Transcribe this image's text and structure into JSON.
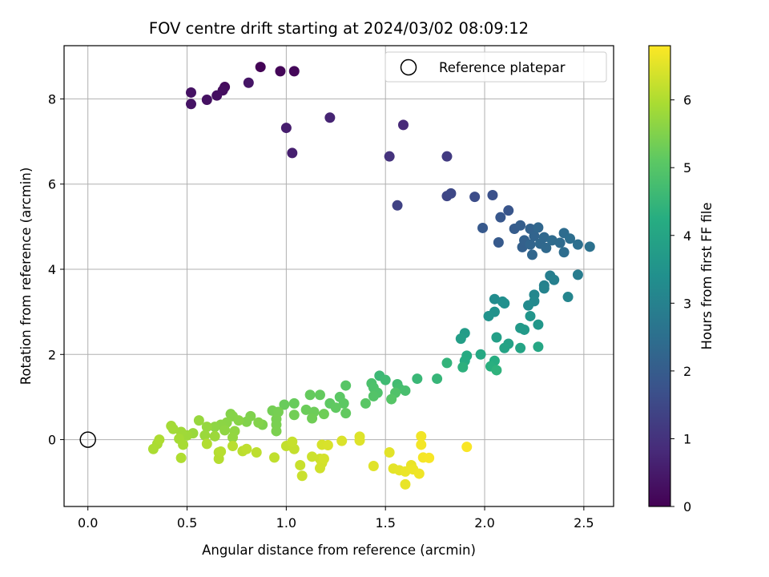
{
  "chart_data": {
    "type": "scatter",
    "title": "FOV centre drift starting at 2024/03/02 08:09:12",
    "xlabel": "Angular distance from reference (arcmin)",
    "ylabel": "Rotation from reference (arcmin)",
    "xlim": [
      -0.12,
      2.65
    ],
    "ylim": [
      -1.57,
      9.25
    ],
    "xticks": [
      0.0,
      0.5,
      1.0,
      1.5,
      2.0,
      2.5
    ],
    "xtick_labels": [
      "0.0",
      "0.5",
      "1.0",
      "1.5",
      "2.0",
      "2.5"
    ],
    "yticks": [
      0,
      2,
      4,
      6,
      8
    ],
    "ytick_labels": [
      "0",
      "2",
      "4",
      "6",
      "8"
    ],
    "grid": true,
    "colormap": "viridis",
    "colorbar": {
      "label": "Hours from first FF file",
      "range": [
        0,
        6.8
      ],
      "ticks": [
        0,
        1,
        2,
        3,
        4,
        5,
        6
      ],
      "tick_labels": [
        "0",
        "1",
        "2",
        "3",
        "4",
        "5",
        "6"
      ]
    },
    "legend": {
      "entries": [
        "Reference platepar"
      ],
      "position": "top-right"
    },
    "reference_point": {
      "name": "Reference platepar",
      "x": 0.0,
      "y": 0.0
    },
    "points": [
      [
        0.87,
        8.75,
        0.05
      ],
      [
        0.97,
        8.65,
        0.1
      ],
      [
        1.04,
        8.65,
        0.12
      ],
      [
        0.69,
        8.28,
        0.2
      ],
      [
        0.68,
        8.2,
        0.25
      ],
      [
        0.65,
        8.08,
        0.28
      ],
      [
        0.6,
        7.98,
        0.32
      ],
      [
        0.52,
        8.15,
        0.34
      ],
      [
        0.52,
        7.88,
        0.36
      ],
      [
        0.81,
        8.38,
        0.4
      ],
      [
        1.0,
        7.32,
        0.55
      ],
      [
        1.03,
        6.73,
        0.6
      ],
      [
        1.22,
        7.56,
        0.7
      ],
      [
        1.59,
        7.39,
        0.8
      ],
      [
        1.52,
        6.65,
        1.0
      ],
      [
        1.81,
        6.65,
        1.2
      ],
      [
        1.56,
        5.5,
        1.35
      ],
      [
        1.81,
        5.72,
        1.45
      ],
      [
        1.83,
        5.78,
        1.5
      ],
      [
        1.95,
        5.7,
        1.6
      ],
      [
        2.04,
        5.74,
        1.7
      ],
      [
        2.12,
        5.38,
        1.8
      ],
      [
        2.08,
        5.22,
        1.85
      ],
      [
        1.99,
        4.97,
        1.9
      ],
      [
        2.07,
        4.63,
        1.95
      ],
      [
        2.15,
        4.95,
        2.0
      ],
      [
        2.18,
        5.03,
        2.05
      ],
      [
        2.19,
        4.52,
        2.1
      ],
      [
        2.2,
        4.68,
        2.12
      ],
      [
        2.23,
        4.95,
        2.15
      ],
      [
        2.25,
        4.78,
        2.2
      ],
      [
        2.23,
        4.58,
        2.22
      ],
      [
        2.24,
        4.34,
        2.25
      ],
      [
        2.27,
        4.98,
        2.28
      ],
      [
        2.28,
        4.6,
        2.3
      ],
      [
        2.3,
        4.75,
        2.32
      ],
      [
        2.31,
        4.5,
        2.35
      ],
      [
        2.34,
        4.68,
        2.38
      ],
      [
        2.38,
        4.62,
        2.4
      ],
      [
        2.4,
        4.85,
        2.42
      ],
      [
        2.4,
        4.4,
        2.45
      ],
      [
        2.43,
        4.72,
        2.47
      ],
      [
        2.47,
        4.58,
        2.5
      ],
      [
        2.53,
        4.53,
        2.55
      ],
      [
        2.47,
        3.87,
        2.85
      ],
      [
        2.33,
        3.85,
        2.9
      ],
      [
        2.35,
        3.75,
        2.95
      ],
      [
        2.3,
        3.62,
        3.0
      ],
      [
        2.3,
        3.55,
        3.05
      ],
      [
        2.42,
        3.35,
        3.1
      ],
      [
        2.25,
        3.4,
        3.15
      ],
      [
        2.25,
        3.25,
        3.2
      ],
      [
        2.22,
        3.15,
        3.25
      ],
      [
        2.05,
        3.3,
        3.3
      ],
      [
        2.09,
        3.24,
        3.35
      ],
      [
        2.1,
        3.2,
        3.4
      ],
      [
        2.05,
        3.0,
        3.45
      ],
      [
        2.02,
        2.9,
        3.5
      ],
      [
        2.23,
        2.9,
        3.55
      ],
      [
        2.27,
        2.7,
        3.6
      ],
      [
        2.18,
        2.62,
        3.65
      ],
      [
        2.2,
        2.58,
        3.7
      ],
      [
        1.9,
        2.5,
        3.75
      ],
      [
        1.88,
        2.37,
        3.8
      ],
      [
        2.06,
        2.4,
        3.85
      ],
      [
        2.12,
        2.25,
        3.9
      ],
      [
        2.1,
        2.15,
        3.95
      ],
      [
        2.18,
        2.15,
        4.0
      ],
      [
        2.27,
        2.18,
        4.05
      ],
      [
        1.98,
        2.0,
        4.1
      ],
      [
        1.91,
        1.97,
        4.15
      ],
      [
        1.9,
        1.85,
        4.2
      ],
      [
        2.05,
        1.85,
        4.25
      ],
      [
        2.03,
        1.72,
        4.3
      ],
      [
        1.89,
        1.7,
        4.35
      ],
      [
        2.06,
        1.63,
        4.4
      ],
      [
        1.81,
        1.8,
        4.45
      ],
      [
        1.76,
        1.43,
        4.5
      ],
      [
        1.66,
        1.43,
        4.55
      ],
      [
        1.47,
        1.5,
        4.6
      ],
      [
        1.5,
        1.4,
        4.65
      ],
      [
        1.56,
        1.3,
        4.7
      ],
      [
        1.57,
        1.2,
        4.75
      ],
      [
        1.6,
        1.15,
        4.8
      ],
      [
        1.43,
        1.32,
        4.85
      ],
      [
        1.44,
        1.22,
        4.88
      ],
      [
        1.46,
        1.1,
        4.9
      ],
      [
        1.55,
        1.1,
        4.92
      ],
      [
        1.44,
        1.02,
        4.95
      ],
      [
        1.53,
        0.95,
        5.0
      ],
      [
        1.3,
        1.27,
        5.02
      ],
      [
        1.4,
        0.85,
        5.05
      ],
      [
        1.27,
        1.0,
        5.08
      ],
      [
        1.29,
        0.85,
        5.1
      ],
      [
        1.22,
        0.85,
        5.12
      ],
      [
        1.25,
        0.75,
        5.14
      ],
      [
        1.3,
        0.62,
        5.16
      ],
      [
        1.17,
        1.05,
        5.18
      ],
      [
        1.12,
        1.05,
        5.2
      ],
      [
        1.04,
        0.85,
        5.22
      ],
      [
        0.99,
        0.82,
        5.24
      ],
      [
        1.1,
        0.7,
        5.26
      ],
      [
        1.14,
        0.65,
        5.28
      ],
      [
        1.19,
        0.6,
        5.3
      ],
      [
        1.13,
        0.5,
        5.32
      ],
      [
        1.04,
        0.58,
        5.34
      ],
      [
        0.93,
        0.68,
        5.36
      ],
      [
        0.96,
        0.65,
        5.38
      ],
      [
        0.95,
        0.48,
        5.4
      ],
      [
        0.95,
        0.35,
        5.42
      ],
      [
        0.95,
        0.2,
        5.44
      ],
      [
        0.88,
        0.35,
        5.46
      ],
      [
        0.82,
        0.55,
        5.48
      ],
      [
        0.8,
        0.42,
        5.5
      ],
      [
        0.86,
        0.4,
        5.52
      ],
      [
        0.72,
        0.6,
        5.54
      ],
      [
        0.73,
        0.55,
        5.56
      ],
      [
        0.76,
        0.45,
        5.58
      ],
      [
        0.7,
        0.4,
        5.6
      ],
      [
        0.67,
        0.35,
        5.62
      ],
      [
        0.64,
        0.3,
        5.64
      ],
      [
        0.69,
        0.22,
        5.66
      ],
      [
        0.74,
        0.2,
        5.68
      ],
      [
        0.73,
        0.05,
        5.7
      ],
      [
        0.6,
        0.3,
        5.72
      ],
      [
        0.56,
        0.45,
        5.74
      ],
      [
        0.53,
        0.15,
        5.76
      ],
      [
        0.59,
        0.1,
        5.78
      ],
      [
        0.64,
        0.08,
        5.8
      ],
      [
        0.5,
        0.1,
        5.82
      ],
      [
        0.47,
        0.18,
        5.84
      ],
      [
        0.43,
        0.25,
        5.86
      ],
      [
        0.42,
        0.32,
        5.88
      ],
      [
        0.46,
        0.02,
        5.9
      ],
      [
        0.48,
        -0.12,
        5.92
      ],
      [
        0.35,
        -0.1,
        5.94
      ],
      [
        0.33,
        -0.22,
        5.96
      ],
      [
        0.36,
        0.0,
        5.98
      ],
      [
        0.47,
        -0.43,
        6.0
      ],
      [
        0.6,
        -0.1,
        6.02
      ],
      [
        0.66,
        -0.3,
        6.04
      ],
      [
        0.66,
        -0.45,
        6.06
      ],
      [
        0.67,
        -0.28,
        6.08
      ],
      [
        0.73,
        -0.15,
        6.1
      ],
      [
        0.78,
        -0.27,
        6.12
      ],
      [
        0.85,
        -0.3,
        6.14
      ],
      [
        0.8,
        -0.22,
        6.16
      ],
      [
        0.94,
        -0.42,
        6.18
      ],
      [
        1.0,
        -0.15,
        6.2
      ],
      [
        1.04,
        -0.22,
        6.22
      ],
      [
        1.03,
        -0.05,
        6.24
      ],
      [
        1.07,
        -0.6,
        6.26
      ],
      [
        1.08,
        -0.85,
        6.28
      ],
      [
        1.13,
        -0.4,
        6.3
      ],
      [
        1.17,
        -0.45,
        6.32
      ],
      [
        1.17,
        -0.67,
        6.34
      ],
      [
        1.18,
        -0.55,
        6.36
      ],
      [
        1.19,
        -0.45,
        6.38
      ],
      [
        1.18,
        -0.12,
        6.4
      ],
      [
        1.21,
        -0.13,
        6.42
      ],
      [
        1.28,
        -0.03,
        6.44
      ],
      [
        1.37,
        0.07,
        6.46
      ],
      [
        1.37,
        -0.02,
        6.48
      ],
      [
        1.44,
        -0.62,
        6.5
      ],
      [
        1.52,
        -0.3,
        6.52
      ],
      [
        1.54,
        -0.68,
        6.54
      ],
      [
        1.57,
        -0.72,
        6.56
      ],
      [
        1.6,
        -1.05,
        6.58
      ],
      [
        1.63,
        -0.6,
        6.6
      ],
      [
        1.6,
        -0.75,
        6.62
      ],
      [
        1.64,
        -0.7,
        6.64
      ],
      [
        1.67,
        -0.8,
        6.66
      ],
      [
        1.68,
        0.08,
        6.68
      ],
      [
        1.68,
        -0.12,
        6.7
      ],
      [
        1.69,
        -0.42,
        6.72
      ],
      [
        1.72,
        -0.43,
        6.74
      ],
      [
        1.91,
        -0.17,
        6.76
      ]
    ]
  }
}
